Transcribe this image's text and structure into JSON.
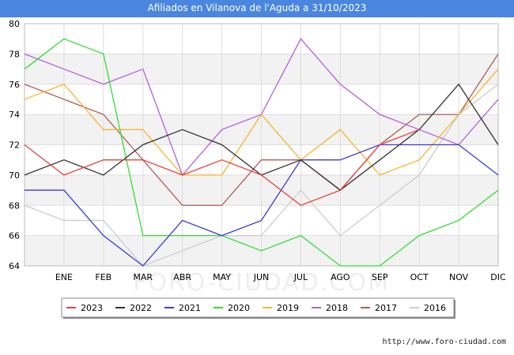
{
  "title": "Afiliados en Vilanova de l'Aguda a 31/10/2023",
  "watermark": "FORO-CIUDAD.COM",
  "source": "http://www.foro-ciudad.com",
  "chart_data": {
    "type": "line",
    "categories": [
      "ENE",
      "FEB",
      "MAR",
      "ABR",
      "MAY",
      "JUN",
      "JUL",
      "AGO",
      "SEP",
      "OCT",
      "NOV",
      "DIC"
    ],
    "ylim": [
      64,
      80
    ],
    "yticks": [
      64,
      66,
      68,
      70,
      72,
      74,
      76,
      78,
      80
    ],
    "grid": true,
    "legend_position": "bottom",
    "series": [
      {
        "name": "2023",
        "color": "#e8423a",
        "start": 72,
        "values": [
          70,
          71,
          71,
          70,
          71,
          70,
          68,
          69,
          72,
          73,
          null,
          null
        ]
      },
      {
        "name": "2022",
        "color": "#333333",
        "start": 70,
        "values": [
          71,
          70,
          72,
          73,
          72,
          70,
          71,
          69,
          71,
          73,
          76,
          72
        ]
      },
      {
        "name": "2021",
        "color": "#3b3bd6",
        "start": 69,
        "values": [
          69,
          66,
          64,
          67,
          66,
          67,
          71,
          71,
          72,
          72,
          72,
          70
        ]
      },
      {
        "name": "2020",
        "color": "#33dd33",
        "start": 77,
        "values": [
          79,
          78,
          66,
          66,
          66,
          65,
          66,
          64,
          64,
          66,
          67,
          69
        ]
      },
      {
        "name": "2019",
        "color": "#f7b52c",
        "start": 75,
        "values": [
          76,
          73,
          73,
          70,
          70,
          74,
          71,
          73,
          70,
          71,
          74,
          77
        ]
      },
      {
        "name": "2018",
        "color": "#b65fe0",
        "start": 78,
        "values": [
          77,
          76,
          77,
          70,
          73,
          74,
          79,
          76,
          74,
          73,
          72,
          75
        ]
      },
      {
        "name": "2017",
        "color": "#b05a5a",
        "start": 76,
        "values": [
          75,
          74,
          71,
          68,
          68,
          71,
          71,
          69,
          72,
          74,
          74,
          78
        ]
      },
      {
        "name": "2016",
        "color": "#cccccc",
        "start": 68,
        "values": [
          67,
          67,
          64,
          65,
          66,
          66,
          69,
          66,
          68,
          70,
          74,
          76
        ]
      }
    ]
  }
}
